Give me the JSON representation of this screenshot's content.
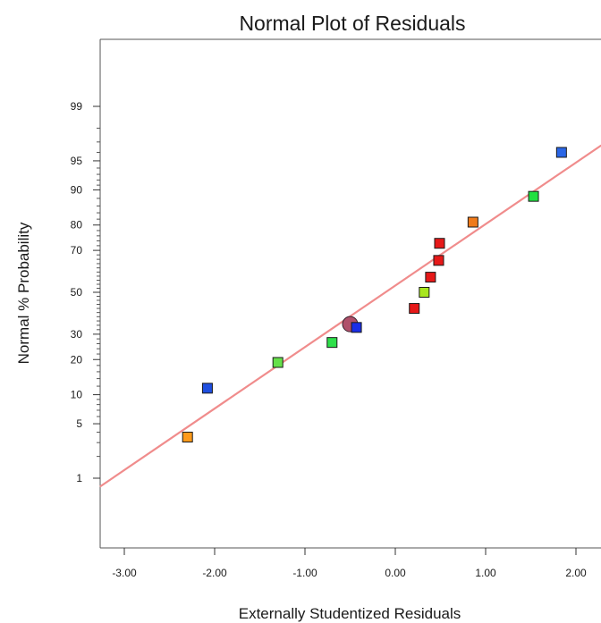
{
  "chart_data": {
    "type": "scatter",
    "title": "Normal Plot of Residuals",
    "xlabel": "Externally Studentized Residuals",
    "ylabel": "Normal % Probability",
    "xlim": [
      -3.27,
      2.28
    ],
    "x_ticks": [
      -3.0,
      -2.0,
      -1.0,
      0.0,
      1.0,
      2.0
    ],
    "x_tick_labels": [
      "-3.00",
      "-2.00",
      "-1.00",
      "0.00",
      "1.00",
      "2.00"
    ],
    "y_scale": "normal-probability",
    "y_ticks": [
      1,
      5,
      10,
      20,
      30,
      50,
      70,
      80,
      90,
      95,
      99
    ],
    "y_tick_labels": [
      "1",
      "5",
      "10",
      "20",
      "30",
      "50",
      "70",
      "80",
      "90",
      "95",
      "99"
    ],
    "y_minor_ticks": [
      2,
      3,
      4,
      6,
      7,
      8,
      9,
      12,
      14,
      16,
      18,
      22,
      24,
      26,
      28,
      32,
      34,
      36,
      38,
      40,
      42,
      44,
      46,
      48,
      52,
      54,
      56,
      58,
      60,
      62,
      64,
      66,
      68,
      72,
      74,
      76,
      78,
      82,
      84,
      86,
      88,
      91,
      92,
      93,
      94,
      96,
      97,
      98
    ],
    "reference_line": {
      "color": "#f08c8c",
      "points": [
        [
          -3.27,
          0.75
        ],
        [
          2.28,
          96.7
        ]
      ]
    },
    "points": [
      {
        "x": -2.3,
        "y": 3.5,
        "color": "#ff9a1a",
        "shape": "square"
      },
      {
        "x": -2.08,
        "y": 11.5,
        "color": "#1f4fe0",
        "shape": "square"
      },
      {
        "x": -1.3,
        "y": 19.0,
        "color": "#66e04a",
        "shape": "square"
      },
      {
        "x": -0.7,
        "y": 26.5,
        "color": "#2ee04a",
        "shape": "square"
      },
      {
        "x": -0.5,
        "y": 34.5,
        "color": "#b0506a",
        "shape": "circle"
      },
      {
        "x": -0.43,
        "y": 33.0,
        "color": "#1a2ee6",
        "shape": "square"
      },
      {
        "x": 0.21,
        "y": 42.0,
        "color": "#e61919",
        "shape": "square"
      },
      {
        "x": 0.32,
        "y": 50.0,
        "color": "#a8e61f",
        "shape": "square"
      },
      {
        "x": 0.39,
        "y": 57.5,
        "color": "#e61919",
        "shape": "square"
      },
      {
        "x": 0.48,
        "y": 65.5,
        "color": "#e61919",
        "shape": "square"
      },
      {
        "x": 0.49,
        "y": 73.0,
        "color": "#e61919",
        "shape": "square"
      },
      {
        "x": 0.86,
        "y": 81.0,
        "color": "#f07a1a",
        "shape": "square"
      },
      {
        "x": 1.53,
        "y": 88.5,
        "color": "#22e040",
        "shape": "square"
      },
      {
        "x": 1.84,
        "y": 96.0,
        "color": "#2a66e6",
        "shape": "square"
      }
    ]
  }
}
